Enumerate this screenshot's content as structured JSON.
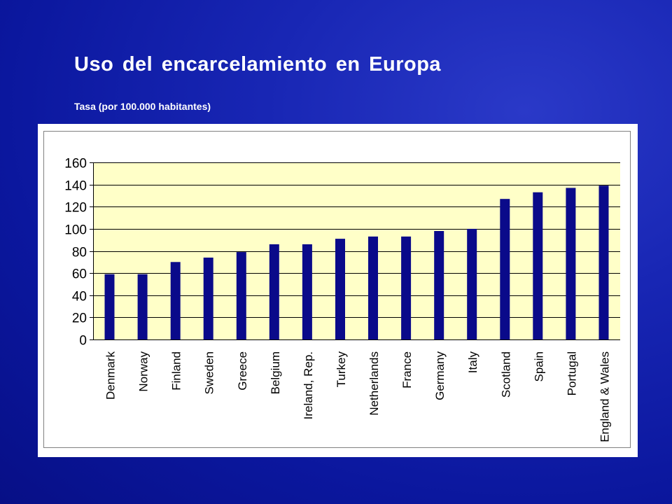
{
  "slide": {
    "title": "Uso del encarcelamiento en Europa",
    "subtitle": "Tasa (por 100.000 habitantes)"
  },
  "colors": {
    "background": "#0b179e",
    "plot_area": "#ffffc8",
    "bar": "#0a0a8a",
    "gridline": "#000000"
  },
  "chart_data": {
    "type": "bar",
    "title": "",
    "xlabel": "",
    "ylabel": "",
    "ylim": [
      0,
      160
    ],
    "yticks": [
      0,
      20,
      40,
      60,
      80,
      100,
      120,
      140,
      160
    ],
    "grid": true,
    "legend": "none",
    "categories": [
      "Denmark",
      "Norway",
      "Finland",
      "Sweden",
      "Greece",
      "Belgium",
      "Ireland, Rep.",
      "Turkey",
      "Netherlands",
      "France",
      "Germany",
      "Italy",
      "Scotland",
      "Spain",
      "Portugal",
      "England & Wales"
    ],
    "values": [
      59,
      59,
      70,
      74,
      79,
      86,
      86,
      91,
      93,
      93,
      98,
      100,
      127,
      133,
      137,
      139
    ]
  }
}
